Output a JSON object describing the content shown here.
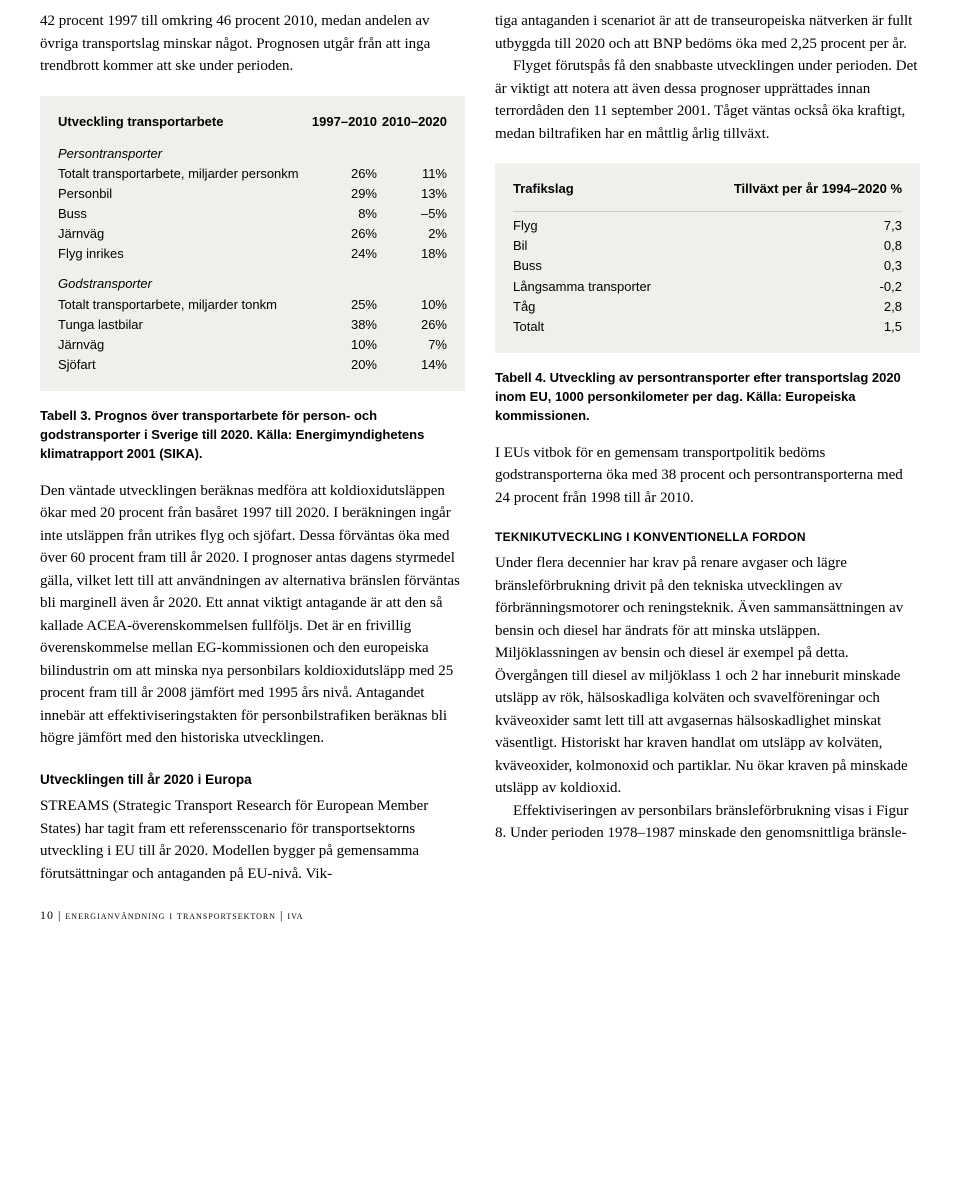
{
  "left": {
    "intro": "42 procent 1997 till omkring 46 procent 2010, medan andelen av övriga transportslag minskar något. Prognosen utgår från att inga trendbrott kommer att ske under perioden.",
    "table3": {
      "title": "Utveckling transportarbete",
      "col1": "1997–2010",
      "col2": "2010–2020",
      "group1": "Persontransporter",
      "rows1": [
        {
          "label": "Totalt transportarbete, miljarder personkm",
          "v1": "26%",
          "v2": "11%"
        },
        {
          "label": "Personbil",
          "v1": "29%",
          "v2": "13%"
        },
        {
          "label": "Buss",
          "v1": "8%",
          "v2": "–5%"
        },
        {
          "label": "Järnväg",
          "v1": "26%",
          "v2": "2%"
        },
        {
          "label": "Flyg inrikes",
          "v1": "24%",
          "v2": "18%"
        }
      ],
      "group2": "Godstransporter",
      "rows2": [
        {
          "label": "Totalt transportarbete, miljarder tonkm",
          "v1": "25%",
          "v2": "10%"
        },
        {
          "label": "Tunga lastbilar",
          "v1": "38%",
          "v2": "26%"
        },
        {
          "label": "Järnväg",
          "v1": "10%",
          "v2": "7%"
        },
        {
          "label": "Sjöfart",
          "v1": "20%",
          "v2": "14%"
        }
      ]
    },
    "caption3_bold": "Tabell 3. Prognos över transportarbete för person- och godstransporter i Sverige till 2020. Källa: Energimyndighetens klimatrapport 2001 (SIKA).",
    "para2": "Den väntade utvecklingen beräknas medföra att koldioxidutsläppen ökar med 20 procent från basåret 1997 till 2020. I beräkningen ingår inte utsläppen från utrikes flyg och sjöfart. Dessa förväntas öka med över 60 procent fram till år 2020. I prognoser antas dagens styrmedel gälla, vilket lett till att användningen av alternativa bränslen förväntas bli marginell även år 2020. Ett annat viktigt antagande är att den så kallade ACEA-överenskommelsen fullföljs. Det är en frivillig överenskommelse mellan EG-kommissionen och den europeiska bilindustrin om att minska nya personbilars koldioxidutsläpp med 25 procent fram till år 2008 jämfört med 1995 års nivå. Antagandet innebär att effektiviseringstakten för personbilstrafiken beräknas bli högre jämfört med den historiska utvecklingen.",
    "heading_europe": "Utvecklingen till år 2020 i Europa",
    "para3a": "STREAMS (Strategic Transport Research för European Member States) har tagit fram ett referensscenario för transportsektorns utveckling i EU till år 2020. Modellen bygger på gemensamma förutsättningar och antaganden på EU-nivå. Vik-"
  },
  "right": {
    "para_top": "tiga antaganden i scenariot är att de transeuropeiska nätverken är fullt utbyggda till 2020 och att BNP bedöms öka med 2,25 procent per år.",
    "para_top2": "Flyget förutspås få den snabbaste utvecklingen under perioden. Det är viktigt att notera att även dessa prognoser upprättades innan terrordåden den 11 september 2001. Tåget väntas också öka kraftigt, medan biltrafiken har en måttlig årlig tillväxt.",
    "table4": {
      "col1": "Trafikslag",
      "col2": "Tillväxt per år 1994–2020 %",
      "rows": [
        {
          "label": "Flyg",
          "v": "7,3"
        },
        {
          "label": "Bil",
          "v": "0,8"
        },
        {
          "label": "Buss",
          "v": "0,3"
        },
        {
          "label": "Långsamma transporter",
          "v": "-0,2"
        },
        {
          "label": "Tåg",
          "v": "2,8"
        },
        {
          "label": "Totalt",
          "v": "1,5"
        }
      ]
    },
    "caption4_bold": "Tabell 4. Utveckling av persontransporter efter transportslag 2020 inom EU, 1000 personkilometer per dag. Källa: Europeiska kommissionen.",
    "para_mid": "I EUs vitbok för en gemensam transportpolitik bedöms godstransporterna öka med 38 procent och persontransporterna med 24 procent från 1998 till år 2010.",
    "heading_tech": "TEKNIKUTVECKLING I KONVENTIONELLA FORDON",
    "para_tech": "Under flera decennier har krav på renare avgaser och lägre bränsleförbrukning drivit på den tekniska utvecklingen av förbränningsmotorer och reningsteknik. Även sammansättningen av bensin och diesel har ändrats för att minska utsläppen. Miljöklassningen av bensin och diesel är exempel på detta. Övergången till diesel av miljöklass 1 och 2 har inneburit minskade utsläpp av rök, hälsoskadliga kolväten och svavelföreningar och kväveoxider samt lett till att avgasernas hälsoskadlighet minskat väsentligt. Historiskt har kraven handlat om utsläpp av kolväten, kväveoxider, kolmonoxid och partiklar. Nu ökar kraven på minskade utsläpp av koldioxid.",
    "para_tech2": "Effektiviseringen av personbilars bränsleförbrukning visas i Figur 8. Under perioden 1978–1987 minskade den genomsnittliga bränsle-"
  },
  "footer": "10  |  energianvändning i transportsektorn  |  iva"
}
